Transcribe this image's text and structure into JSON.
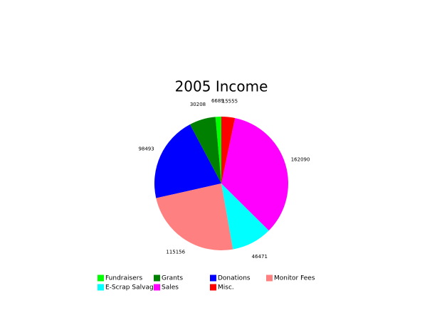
{
  "chart_data": {
    "type": "pie",
    "title": "2005 Income",
    "categories": [
      "Fundraisers",
      "Grants",
      "Donations",
      "Monitor Fees",
      "E-Scrap Salvage",
      "Sales",
      "Misc."
    ],
    "values": [
      6689,
      30208,
      98493,
      115156,
      46471,
      162090,
      15555
    ],
    "colors": [
      "#00ff00",
      "#008000",
      "#0000ff",
      "#ff8080",
      "#00ffff",
      "#ff00ff",
      "#ff0000"
    ],
    "legend": "bottom"
  }
}
